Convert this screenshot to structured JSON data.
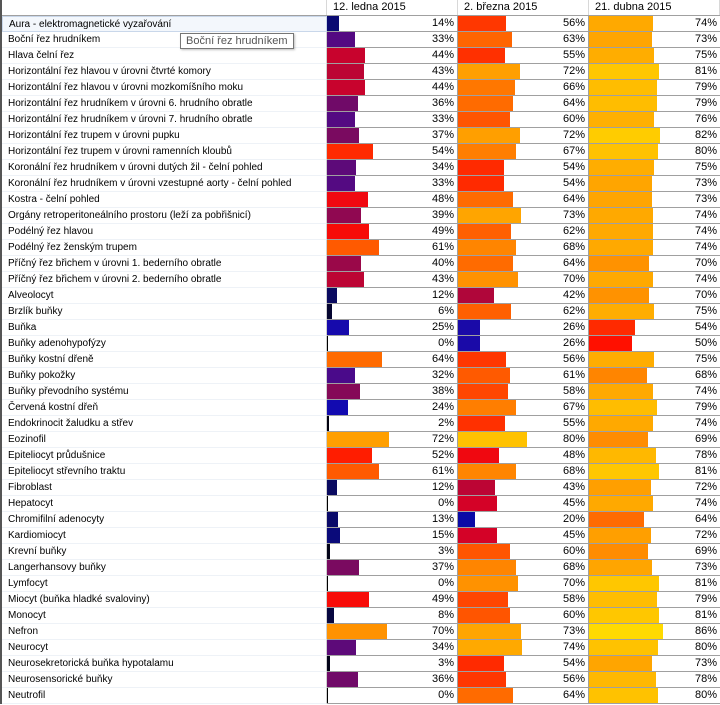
{
  "columns": [
    "",
    "12. ledna 2015",
    "2. března 2015",
    "21. dubna 2015"
  ],
  "tooltip": "Boční řez hrudníkem",
  "selected_row": 0,
  "color_scale": [
    [
      0,
      "#000000"
    ],
    [
      12,
      "#0a0a60"
    ],
    [
      22,
      "#0a0ab8"
    ],
    [
      26,
      "#1a0aa8"
    ],
    [
      32,
      "#4a0a8a"
    ],
    [
      37,
      "#7a0a60"
    ],
    [
      42,
      "#b0063a"
    ],
    [
      46,
      "#e00020"
    ],
    [
      50,
      "#ff1000"
    ],
    [
      55,
      "#ff3000"
    ],
    [
      60,
      "#ff5500"
    ],
    [
      65,
      "#ff7000"
    ],
    [
      69,
      "#ff8c00"
    ],
    [
      73,
      "#ffa500"
    ],
    [
      78,
      "#ffb800"
    ],
    [
      82,
      "#ffcc00"
    ],
    [
      87,
      "#ffdd00"
    ]
  ],
  "rows": [
    {
      "name": "Aura - elektromagnetické vyzařování",
      "values": [
        14,
        56,
        74
      ]
    },
    {
      "name": "Boční řez hrudníkem",
      "values": [
        33,
        63,
        73
      ]
    },
    {
      "name": "Hlava čelní řez",
      "values": [
        44,
        55,
        75
      ]
    },
    {
      "name": "Horizontální řez hlavou v úrovni čtvrté komory",
      "values": [
        43,
        72,
        81
      ]
    },
    {
      "name": "Horizontální řez hlavou v úrovni mozkomíšního moku",
      "values": [
        44,
        66,
        79
      ]
    },
    {
      "name": "Horizontální řez hrudníkem v úrovni 6. hrudního obratle",
      "values": [
        36,
        64,
        79
      ]
    },
    {
      "name": "Horizontální řez hrudníkem v úrovni 7. hrudního obratle",
      "values": [
        33,
        60,
        76
      ]
    },
    {
      "name": "Horizontální řez trupem v úrovni pupku",
      "values": [
        37,
        72,
        82
      ]
    },
    {
      "name": "Horizontální řez trupem v úrovni ramenních kloubů",
      "values": [
        54,
        67,
        80
      ]
    },
    {
      "name": "Koronální řez hrudníkem v úrovni dutých žil - čelní pohled",
      "values": [
        34,
        54,
        75
      ]
    },
    {
      "name": "Koronální řez hrudníkem v úrovni vzestupné aorty - čelní pohled",
      "values": [
        33,
        54,
        73
      ]
    },
    {
      "name": "Kostra - čelní pohled",
      "values": [
        48,
        64,
        73
      ]
    },
    {
      "name": "Orgány retroperitoneálního prostoru (leží za pobřišnicí)",
      "values": [
        39,
        73,
        74
      ]
    },
    {
      "name": "Podélný řez hlavou",
      "values": [
        49,
        62,
        74
      ]
    },
    {
      "name": "Podélný řez ženským trupem",
      "values": [
        61,
        68,
        74
      ]
    },
    {
      "name": "Příčný řez břichem v úrovni 1. bederního obratle",
      "values": [
        40,
        64,
        70
      ]
    },
    {
      "name": "Příčný řez břichem v úrovni 2. bederního obratle",
      "values": [
        43,
        70,
        74
      ]
    },
    {
      "name": "Alveolocyt",
      "values": [
        12,
        42,
        70
      ]
    },
    {
      "name": "Brzlík buňky",
      "values": [
        6,
        62,
        75
      ]
    },
    {
      "name": "Buňka",
      "values": [
        25,
        26,
        54
      ]
    },
    {
      "name": "Buňky adenohypofýzy",
      "values": [
        0,
        26,
        50
      ]
    },
    {
      "name": "Buňky kostní dřeně",
      "values": [
        64,
        56,
        75
      ]
    },
    {
      "name": "Buňky pokožky",
      "values": [
        32,
        61,
        68
      ]
    },
    {
      "name": "Buňky převodního systému",
      "values": [
        38,
        58,
        74
      ]
    },
    {
      "name": "Červená kostní dřeň",
      "values": [
        24,
        67,
        79
      ]
    },
    {
      "name": "Endokrinocit žaludku a střev",
      "values": [
        2,
        55,
        74
      ]
    },
    {
      "name": "Eozinofil",
      "values": [
        72,
        80,
        69
      ]
    },
    {
      "name": "Epiteliocyt průdušnice",
      "values": [
        52,
        48,
        78
      ]
    },
    {
      "name": "Epiteliocyt střevního traktu",
      "values": [
        61,
        68,
        81
      ]
    },
    {
      "name": "Fibroblast",
      "values": [
        12,
        43,
        72
      ]
    },
    {
      "name": "Hepatocyt",
      "values": [
        0,
        45,
        74
      ]
    },
    {
      "name": "Chromifilní adenocyty",
      "values": [
        13,
        20,
        64
      ]
    },
    {
      "name": "Kardiomiocyt",
      "values": [
        15,
        45,
        72
      ]
    },
    {
      "name": "Krevní buňky",
      "values": [
        3,
        60,
        69
      ]
    },
    {
      "name": "Langerhansovy buňky",
      "values": [
        37,
        68,
        73
      ]
    },
    {
      "name": "Lymfocyt",
      "values": [
        0,
        70,
        81
      ]
    },
    {
      "name": "Miocyt (buňka hladké svaloviny)",
      "values": [
        49,
        58,
        79
      ]
    },
    {
      "name": "Monocyt",
      "values": [
        8,
        60,
        81
      ]
    },
    {
      "name": "Nefron",
      "values": [
        70,
        73,
        86
      ]
    },
    {
      "name": "Neurocyt",
      "values": [
        34,
        74,
        80
      ]
    },
    {
      "name": "Neurosekretorická buňka hypotalamu",
      "values": [
        3,
        54,
        73
      ]
    },
    {
      "name": "Neurosensorické buňky",
      "values": [
        36,
        56,
        78
      ]
    },
    {
      "name": "Neutrofil",
      "values": [
        0,
        64,
        80
      ]
    }
  ]
}
